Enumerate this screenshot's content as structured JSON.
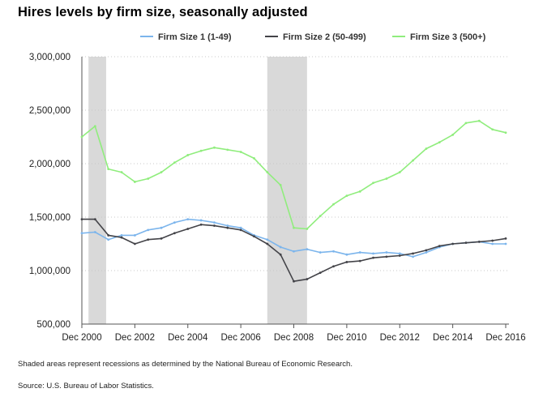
{
  "chart_data": {
    "type": "line",
    "title": "Hires levels by firm size, seasonally adjusted",
    "xlabel": "",
    "ylabel": "",
    "x_range": [
      "2000-12",
      "2016-12"
    ],
    "x_ticks": [
      "Dec 2000",
      "Dec 2002",
      "Dec 2004",
      "Dec 2006",
      "Dec 2008",
      "Dec 2010",
      "Dec 2012",
      "Dec 2014",
      "Dec 2016"
    ],
    "ylim": [
      500000,
      3000000
    ],
    "y_ticks": [
      "500,000",
      "1,000,000",
      "1,500,000",
      "2,000,000",
      "2,500,000",
      "3,000,000"
    ],
    "y_tick_values": [
      500000,
      1000000,
      1500000,
      2000000,
      2500000,
      3000000
    ],
    "grid": "horizontal dotted",
    "legend_position": "top",
    "recessions": [
      {
        "start": "2001-03",
        "end": "2001-11"
      },
      {
        "start": "2007-12",
        "end": "2009-06"
      }
    ],
    "x": [
      "2000-12",
      "2001-06",
      "2001-12",
      "2002-06",
      "2002-12",
      "2003-06",
      "2003-12",
      "2004-06",
      "2004-12",
      "2005-06",
      "2005-12",
      "2006-06",
      "2006-12",
      "2007-06",
      "2007-12",
      "2008-06",
      "2008-12",
      "2009-06",
      "2009-12",
      "2010-06",
      "2010-12",
      "2011-06",
      "2011-12",
      "2012-06",
      "2012-12",
      "2013-06",
      "2013-12",
      "2014-06",
      "2014-12",
      "2015-06",
      "2015-12",
      "2016-06",
      "2016-12"
    ],
    "series": [
      {
        "name": "Firm Size 1 (1-49)",
        "color": "#7cb5ec",
        "values": [
          1350000,
          1360000,
          1290000,
          1330000,
          1330000,
          1380000,
          1400000,
          1450000,
          1480000,
          1470000,
          1450000,
          1420000,
          1400000,
          1330000,
          1290000,
          1220000,
          1180000,
          1200000,
          1170000,
          1180000,
          1150000,
          1170000,
          1160000,
          1170000,
          1160000,
          1130000,
          1170000,
          1220000,
          1250000,
          1260000,
          1270000,
          1250000,
          1250000
        ]
      },
      {
        "name": "Firm Size 2 (50-499)",
        "color": "#434348",
        "values": [
          1480000,
          1480000,
          1330000,
          1310000,
          1250000,
          1290000,
          1300000,
          1350000,
          1390000,
          1430000,
          1420000,
          1400000,
          1380000,
          1320000,
          1250000,
          1150000,
          900000,
          920000,
          980000,
          1040000,
          1080000,
          1090000,
          1120000,
          1130000,
          1140000,
          1160000,
          1190000,
          1230000,
          1250000,
          1260000,
          1270000,
          1280000,
          1300000
        ]
      },
      {
        "name": "Firm Size 3 (500+)",
        "color": "#90ed7d",
        "values": [
          2250000,
          2350000,
          1950000,
          1920000,
          1830000,
          1860000,
          1920000,
          2010000,
          2080000,
          2120000,
          2150000,
          2130000,
          2110000,
          2050000,
          1920000,
          1800000,
          1400000,
          1390000,
          1510000,
          1620000,
          1700000,
          1740000,
          1820000,
          1860000,
          1920000,
          2030000,
          2140000,
          2200000,
          2270000,
          2380000,
          2400000,
          2320000,
          2290000
        ]
      }
    ]
  },
  "notes": {
    "recession": "Shaded areas represent recessions as determined by the National Bureau of Economic Research.",
    "source": "Source: U.S. Bureau of Labor Statistics."
  }
}
